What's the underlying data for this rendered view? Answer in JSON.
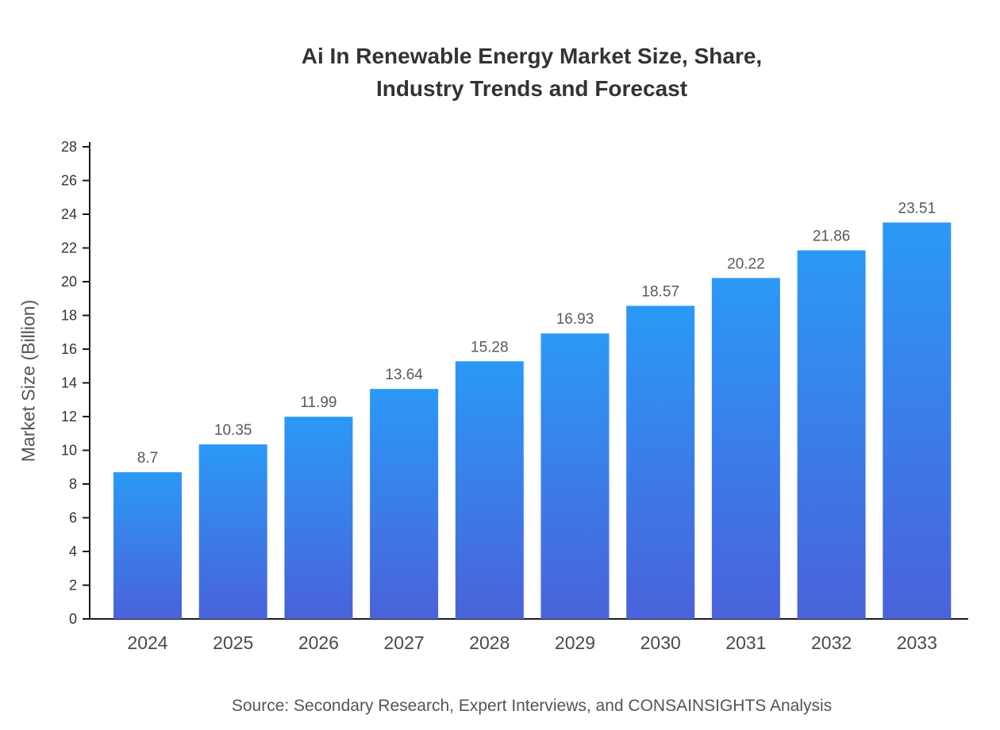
{
  "title": {
    "line1": "Ai In Renewable Energy Market Size, Share,",
    "line2": "Industry Trends and Forecast"
  },
  "source": "Source: Secondary Research, Expert Interviews, and CONSAINSIGHTS Analysis",
  "chart_data": {
    "type": "bar",
    "title": "Ai In Renewable Energy Market Size, Share, Industry Trends and Forecast",
    "categories": [
      "2024",
      "2025",
      "2026",
      "2027",
      "2028",
      "2029",
      "2030",
      "2031",
      "2032",
      "2033"
    ],
    "values": [
      8.7,
      10.35,
      11.99,
      13.64,
      15.28,
      16.93,
      18.57,
      20.22,
      21.86,
      23.51
    ],
    "xlabel": "",
    "ylabel": "Market Size (Billion)",
    "ylim": [
      0,
      28
    ],
    "ytick_step": 2,
    "grid": false,
    "legend": "none",
    "value_labels_shown": true,
    "style": {
      "bar_top": "#2b99f7",
      "bar_bottom": "#4a62d9",
      "axis": "#1a1a1a",
      "tick_label": "#333333",
      "x_label": "#4a4a4a",
      "value_label": "#5a5a5a",
      "title_color": "#333333",
      "text_gray": "#555555"
    }
  }
}
